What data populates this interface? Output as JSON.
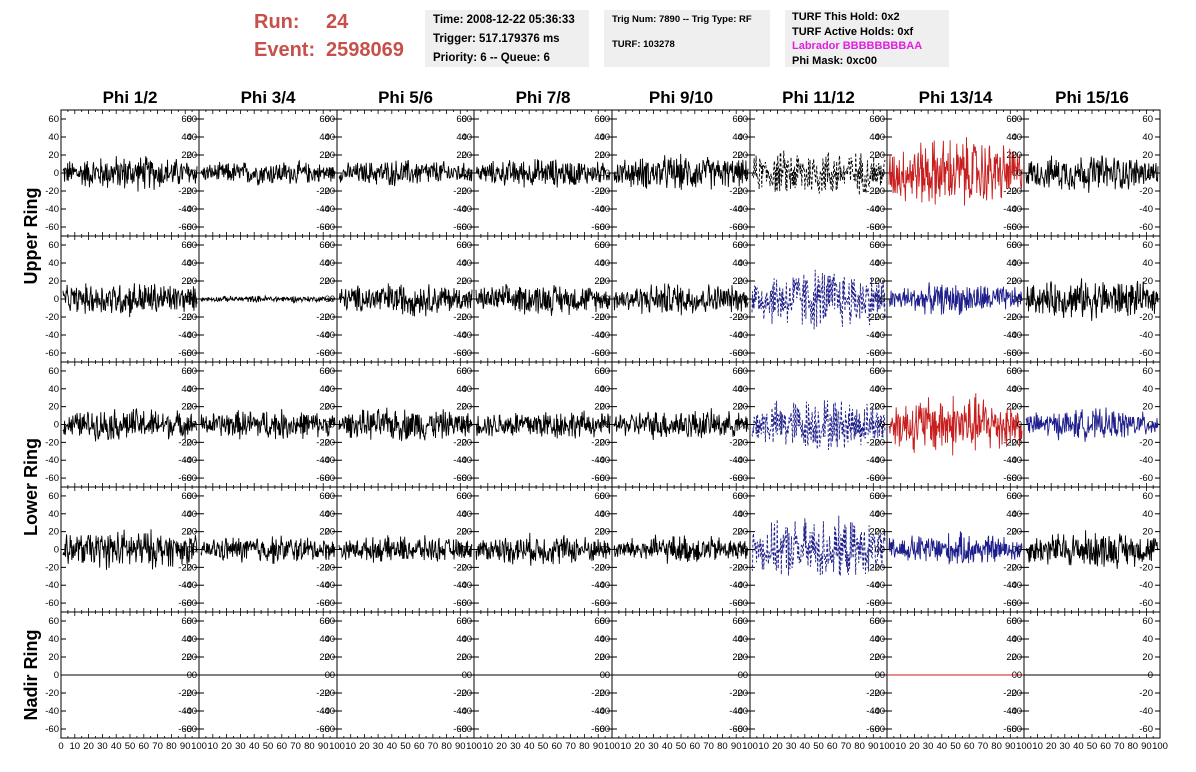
{
  "header": {
    "run_label": "Run:",
    "run_value": "24",
    "event_label": "Event:",
    "event_value": "2598069",
    "time": "Time: 2008-12-22 05:36:33",
    "trigger": "Trigger: 517.179376 ms",
    "priority": "Priority: 6 -- Queue: 6",
    "trig_num": "Trig Num: 7890 -- Trig Type: RF",
    "turf": "TURF: 103278",
    "turf_this_hold": "TURF This Hold: 0x2",
    "turf_active_holds": "TURF Active Holds: 0xf",
    "labrador": "Labrador BBBBBBBBAA",
    "phi_mask": "Phi Mask: 0xc00"
  },
  "chart_data": {
    "type": "line",
    "columns": [
      "Phi 1/2",
      "Phi 3/4",
      "Phi 5/6",
      "Phi 7/8",
      "Phi 9/10",
      "Phi 11/12",
      "Phi 13/14",
      "Phi 15/16"
    ],
    "rows": [
      "Upper Ring",
      "Upper Ring",
      "Lower Ring",
      "Lower Ring",
      "Nadir Ring"
    ],
    "ring_labels": [
      "Upper Ring",
      "Lower Ring",
      "Nadir Ring"
    ],
    "xlim": [
      0,
      100
    ],
    "ylim": [
      -70,
      70
    ],
    "y_ticks": [
      "60",
      "40",
      "20",
      "0",
      "-20",
      "-40",
      "-60"
    ],
    "x_ticks_first": [
      "0",
      "10",
      "20",
      "30",
      "40",
      "50",
      "60",
      "70",
      "80",
      "90",
      "100"
    ],
    "x_ticks_other": [
      "10",
      "20",
      "30",
      "40",
      "50",
      "60",
      "70",
      "80",
      "90",
      "100"
    ],
    "colors": {
      "normal": "#000000",
      "triggered_red": "#c81e1e",
      "triggered_blue": "#1e1e8c",
      "header_red": "#c8504a",
      "labrador": "#e020e0"
    },
    "panels": [
      [
        {
          "a": 16,
          "c": "normal"
        },
        {
          "a": 11,
          "c": "normal"
        },
        {
          "a": 12,
          "c": "normal"
        },
        {
          "a": 13,
          "c": "normal"
        },
        {
          "a": 16,
          "c": "normal"
        },
        {
          "a": 22,
          "c": "normal",
          "dash": true
        },
        {
          "a": 32,
          "c": "triggered_red"
        },
        {
          "a": 17,
          "c": "normal"
        }
      ],
      [
        {
          "a": 16,
          "c": "normal"
        },
        {
          "a": 3,
          "c": "normal"
        },
        {
          "a": 15,
          "c": "normal"
        },
        {
          "a": 14,
          "c": "normal"
        },
        {
          "a": 15,
          "c": "normal"
        },
        {
          "a": 28,
          "c": "triggered_blue",
          "dash": true
        },
        {
          "a": 14,
          "c": "triggered_blue"
        },
        {
          "a": 18,
          "c": "normal"
        }
      ],
      [
        {
          "a": 15,
          "c": "normal"
        },
        {
          "a": 14,
          "c": "normal"
        },
        {
          "a": 15,
          "c": "normal"
        },
        {
          "a": 14,
          "c": "normal"
        },
        {
          "a": 14,
          "c": "normal"
        },
        {
          "a": 24,
          "c": "triggered_blue",
          "dash": true
        },
        {
          "a": 28,
          "c": "triggered_red"
        },
        {
          "a": 14,
          "c": "triggered_blue"
        }
      ],
      [
        {
          "a": 18,
          "c": "normal"
        },
        {
          "a": 13,
          "c": "normal"
        },
        {
          "a": 12,
          "c": "normal"
        },
        {
          "a": 14,
          "c": "normal"
        },
        {
          "a": 13,
          "c": "normal"
        },
        {
          "a": 28,
          "c": "triggered_blue",
          "dash": true
        },
        {
          "a": 15,
          "c": "triggered_blue"
        },
        {
          "a": 17,
          "c": "normal"
        }
      ],
      [
        {
          "a": 0,
          "c": "normal"
        },
        {
          "a": 0,
          "c": "normal"
        },
        {
          "a": 0,
          "c": "normal"
        },
        {
          "a": 0,
          "c": "normal"
        },
        {
          "a": 0,
          "c": "normal"
        },
        {
          "a": 0,
          "c": "normal"
        },
        {
          "a": 0,
          "c": "triggered_red"
        },
        {
          "a": 0,
          "c": "normal"
        }
      ]
    ],
    "grid": false
  }
}
